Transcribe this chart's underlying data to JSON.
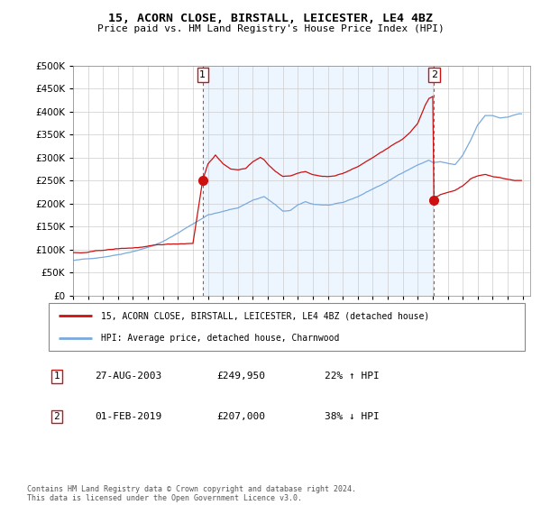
{
  "title": "15, ACORN CLOSE, BIRSTALL, LEICESTER, LE4 4BZ",
  "subtitle": "Price paid vs. HM Land Registry's House Price Index (HPI)",
  "ylim": [
    0,
    500000
  ],
  "yticks": [
    0,
    50000,
    100000,
    150000,
    200000,
    250000,
    300000,
    350000,
    400000,
    450000,
    500000
  ],
  "xlim_start": 1995.0,
  "xlim_end": 2025.5,
  "hpi_color": "#7aaadd",
  "price_color": "#cc1111",
  "vline_color": "#cc1111",
  "grid_color": "#cccccc",
  "bg_color": "#ddeeff",
  "legend_box_label1": "15, ACORN CLOSE, BIRSTALL, LEICESTER, LE4 4BZ (detached house)",
  "legend_box_label2": "HPI: Average price, detached house, Charnwood",
  "transaction1_label": "1",
  "transaction1_date": "27-AUG-2003",
  "transaction1_price": "£249,950",
  "transaction1_hpi": "22% ↑ HPI",
  "transaction1_year": 2003.65,
  "transaction1_price_val": 249950,
  "transaction2_label": "2",
  "transaction2_date": "01-FEB-2019",
  "transaction2_price": "£207,000",
  "transaction2_hpi": "38% ↓ HPI",
  "transaction2_year": 2019.08,
  "transaction2_price_val": 207000,
  "footer": "Contains HM Land Registry data © Crown copyright and database right 2024.\nThis data is licensed under the Open Government Licence v3.0."
}
